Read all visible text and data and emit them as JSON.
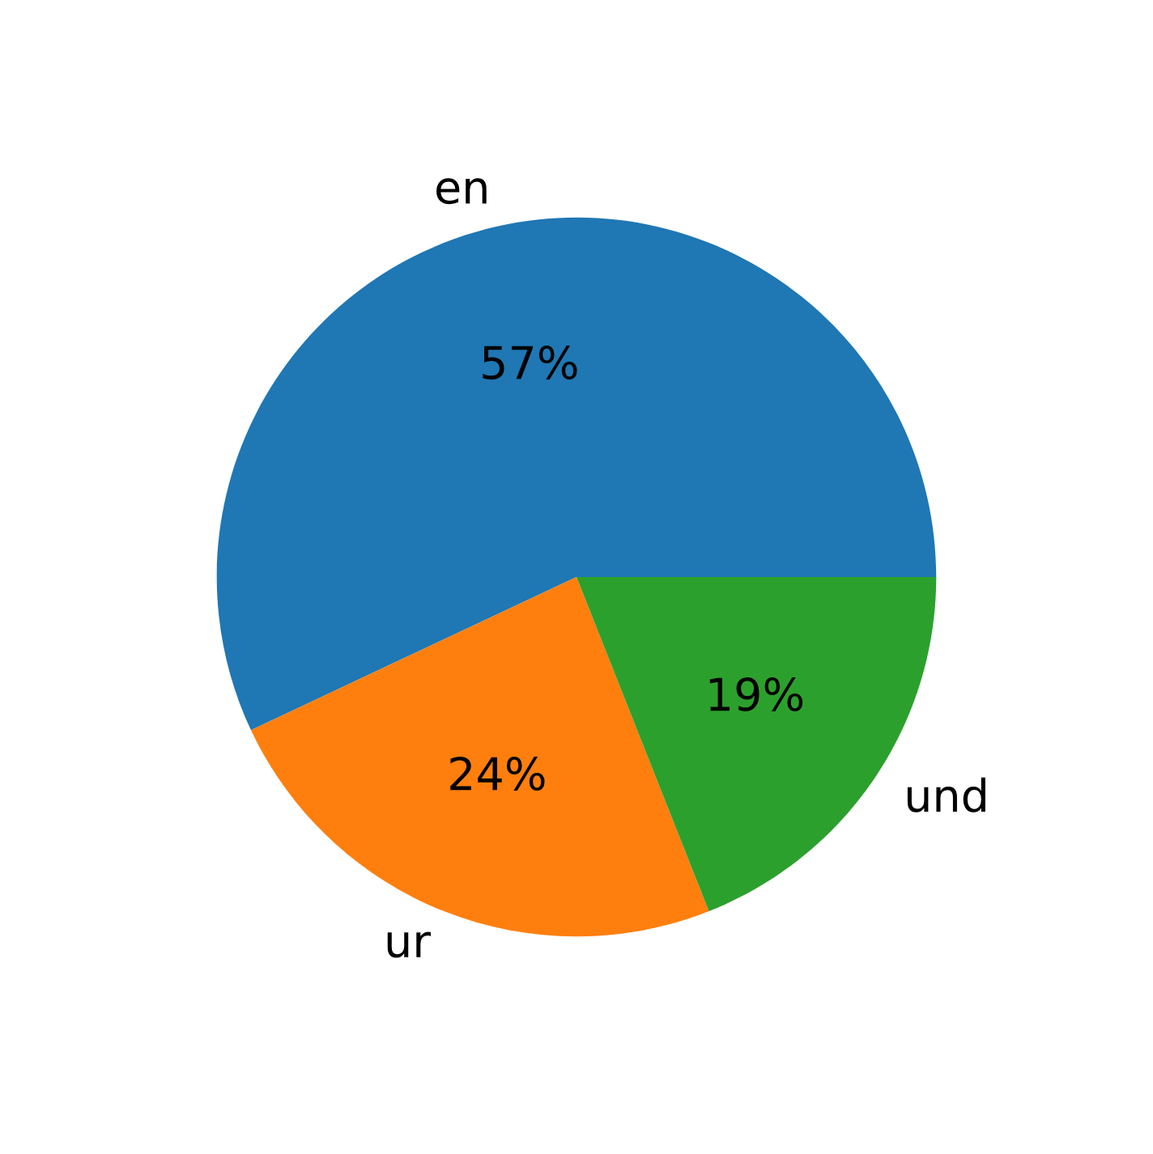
{
  "chart_data": {
    "type": "pie",
    "categories": [
      "en",
      "ur",
      "und"
    ],
    "values": [
      57,
      24,
      19
    ],
    "colors": [
      "#1f77b4",
      "#ff7f0e",
      "#2ca02c"
    ],
    "value_labels": [
      "57%",
      "24%",
      "19%"
    ]
  }
}
